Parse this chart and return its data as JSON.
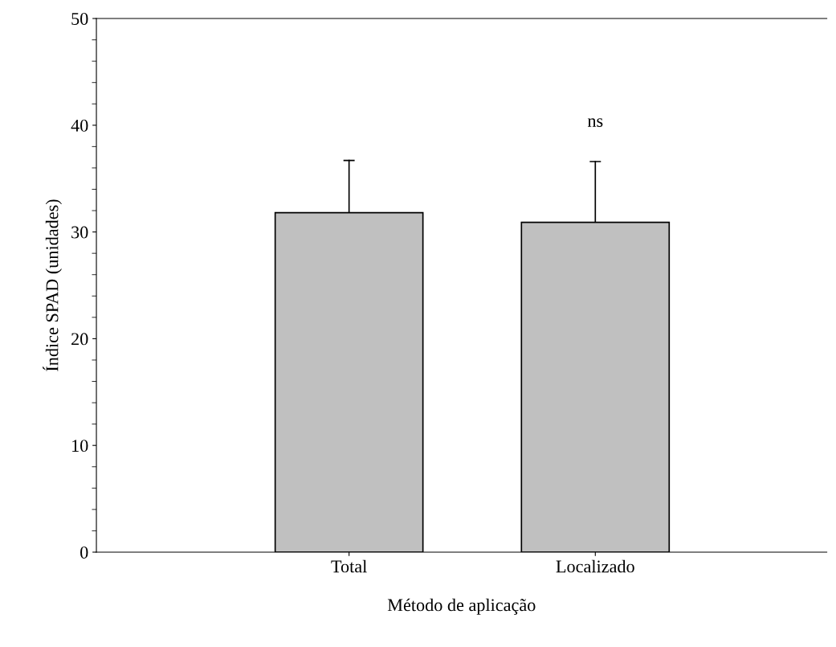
{
  "chart_data": {
    "type": "bar",
    "xlabel": "Método de aplicação",
    "ylabel": "Índice SPAD (unidades)",
    "categories": [
      "Total",
      "Localizado"
    ],
    "values": [
      31.8,
      30.9
    ],
    "errors": [
      [
        31.8,
        36.7
      ],
      [
        30.9,
        36.6
      ]
    ],
    "color": "#c0c0c0",
    "ylim": [
      0,
      50
    ],
    "yticks": [
      0,
      10,
      20,
      30,
      40,
      50
    ],
    "annotations": [
      "ns"
    ],
    "grid": false,
    "legend": false
  }
}
